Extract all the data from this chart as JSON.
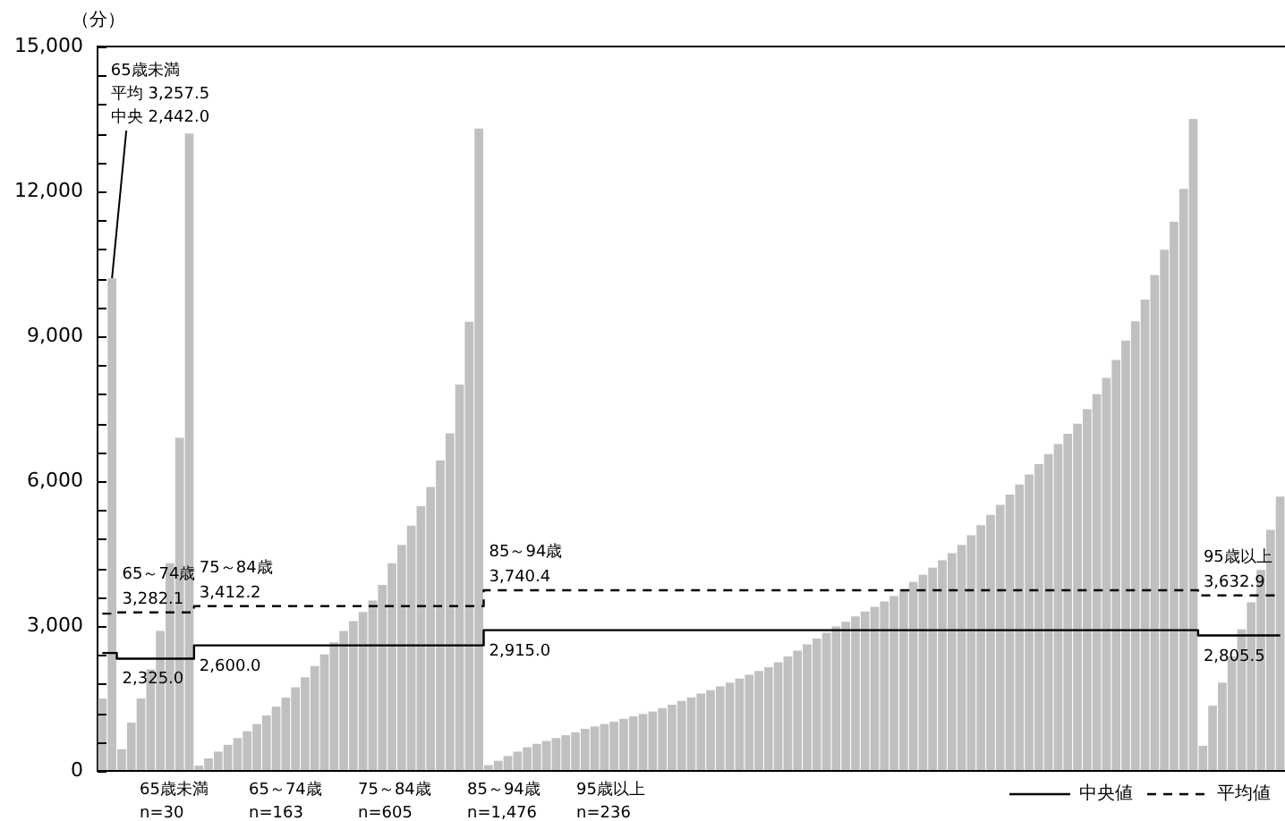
{
  "chart_data": {
    "type": "bar",
    "ylabel": "（分）",
    "categories": [
      null,
      null,
      null,
      null,
      null,
      null,
      null,
      null,
      null,
      null,
      null,
      null,
      null,
      null,
      null,
      null,
      null,
      null,
      null,
      null,
      null,
      null,
      null,
      null,
      null,
      null,
      null,
      null,
      null,
      null,
      null,
      null,
      null,
      null,
      null,
      null,
      null,
      null,
      null,
      null,
      null,
      null,
      null,
      null,
      null,
      null,
      null,
      null,
      null,
      null,
      null,
      null,
      null,
      null,
      null,
      null,
      null,
      null,
      null,
      null,
      null,
      null,
      null,
      null,
      null,
      null,
      null,
      null,
      null,
      null,
      null,
      null,
      null,
      null,
      null,
      null,
      null,
      null,
      null,
      null,
      null,
      null,
      null,
      null,
      null,
      null,
      null,
      null,
      null,
      null,
      null,
      null,
      null,
      null,
      null,
      null,
      null,
      null,
      null,
      null,
      null,
      null,
      null,
      null,
      null,
      null,
      null,
      null,
      null,
      null,
      null,
      null,
      null,
      null,
      null,
      null,
      null,
      null,
      null,
      null,
      null,
      null,
      null
    ],
    "ylim": [
      0,
      15000
    ],
    "yticks": [
      {
        "value": 0,
        "label": "0"
      },
      {
        "value": 600,
        "label": null
      },
      {
        "value": 1200,
        "label": null
      },
      {
        "value": 1800,
        "label": null
      },
      {
        "value": 2400,
        "label": null
      },
      {
        "value": 3000,
        "label": "3,000"
      },
      {
        "value": 3600,
        "label": null
      },
      {
        "value": 4200,
        "label": null
      },
      {
        "value": 4800,
        "label": null
      },
      {
        "value": 5400,
        "label": null
      },
      {
        "value": 6000,
        "label": "6,000"
      },
      {
        "value": 6600,
        "label": null
      },
      {
        "value": 7200,
        "label": null
      },
      {
        "value": 7800,
        "label": null
      },
      {
        "value": 8400,
        "label": null
      },
      {
        "value": 9000,
        "label": "9,000"
      },
      {
        "value": 9600,
        "label": null
      },
      {
        "value": 10200,
        "label": null
      },
      {
        "value": 10800,
        "label": null
      },
      {
        "value": 11400,
        "label": null
      },
      {
        "value": 12000,
        "label": "12,000"
      },
      {
        "value": 12600,
        "label": null
      },
      {
        "value": 13200,
        "label": null
      },
      {
        "value": 13800,
        "label": null
      },
      {
        "value": 14400,
        "label": null
      },
      {
        "value": 15000,
        "label": "15,000"
      }
    ],
    "tick_labels": "y",
    "legend": "bottom right",
    "series": [
      {
        "color": "#c0c0c0",
        "values": [
          1500,
          10200,
          450,
          1000,
          1500,
          2100,
          2900,
          4300,
          6900,
          13200,
          110,
          260,
          400,
          540,
          680,
          820,
          970,
          1150,
          1330,
          1520,
          1730,
          1940,
          2170,
          2410,
          2660,
          2900,
          3100,
          3290,
          3530,
          3850,
          4300,
          4680,
          5080,
          5480,
          5880,
          6430,
          6990,
          8000,
          9300,
          13300,
          120,
          210,
          310,
          400,
          490,
          560,
          620,
          680,
          740,
          800,
          870,
          920,
          970,
          1020,
          1080,
          1130,
          1180,
          1230,
          1300,
          1370,
          1450,
          1520,
          1600,
          1670,
          1750,
          1830,
          1910,
          1990,
          2070,
          2150,
          2250,
          2370,
          2490,
          2620,
          2740,
          2860,
          2990,
          3090,
          3200,
          3300,
          3400,
          3510,
          3620,
          3760,
          3910,
          4060,
          4210,
          4360,
          4510,
          4680,
          4880,
          5090,
          5300,
          5510,
          5720,
          5930,
          6140,
          6350,
          6560,
          6770,
          6980,
          7190,
          7490,
          7800,
          8140,
          8510,
          8910,
          9310,
          9760,
          10270,
          10790,
          11370,
          12050,
          13500,
          520,
          1350,
          1830,
          2370,
          2930,
          3490,
          4160,
          4990,
          5680
        ]
      },
      {
        "name": "中央値",
        "type": "line",
        "color": "#000000",
        "line_style": "solid",
        "marker": "none",
        "values": [
          2442,
          2442,
          2325,
          2325,
          2325,
          2325,
          2325,
          2325,
          2325,
          2325,
          2600,
          2600,
          2600,
          2600,
          2600,
          2600,
          2600,
          2600,
          2600,
          2600,
          2600,
          2600,
          2600,
          2600,
          2600,
          2600,
          2600,
          2600,
          2600,
          2600,
          2600,
          2600,
          2600,
          2600,
          2600,
          2600,
          2600,
          2600,
          2600,
          2600,
          2915,
          2915,
          2915,
          2915,
          2915,
          2915,
          2915,
          2915,
          2915,
          2915,
          2915,
          2915,
          2915,
          2915,
          2915,
          2915,
          2915,
          2915,
          2915,
          2915,
          2915,
          2915,
          2915,
          2915,
          2915,
          2915,
          2915,
          2915,
          2915,
          2915,
          2915,
          2915,
          2915,
          2915,
          2915,
          2915,
          2915,
          2915,
          2915,
          2915,
          2915,
          2915,
          2915,
          2915,
          2915,
          2915,
          2915,
          2915,
          2915,
          2915,
          2915,
          2915,
          2915,
          2915,
          2915,
          2915,
          2915,
          2915,
          2915,
          2915,
          2915,
          2915,
          2915,
          2915,
          2915,
          2915,
          2915,
          2915,
          2915,
          2915,
          2915,
          2915,
          2915,
          2915,
          2805.5,
          2805.5,
          2805.5,
          2805.5,
          2805.5,
          2805.5,
          2805.5,
          2805.5,
          2805.5
        ]
      },
      {
        "name": "平均値",
        "type": "line",
        "color": "#000000",
        "line_style": "dashed",
        "marker": "none",
        "values": [
          3257.5,
          3257.5,
          3282.1,
          3282.1,
          3282.1,
          3282.1,
          3282.1,
          3282.1,
          3282.1,
          3282.1,
          3412.2,
          3412.2,
          3412.2,
          3412.2,
          3412.2,
          3412.2,
          3412.2,
          3412.2,
          3412.2,
          3412.2,
          3412.2,
          3412.2,
          3412.2,
          3412.2,
          3412.2,
          3412.2,
          3412.2,
          3412.2,
          3412.2,
          3412.2,
          3412.2,
          3412.2,
          3412.2,
          3412.2,
          3412.2,
          3412.2,
          3412.2,
          3412.2,
          3412.2,
          3412.2,
          3740.4,
          3740.4,
          3740.4,
          3740.4,
          3740.4,
          3740.4,
          3740.4,
          3740.4,
          3740.4,
          3740.4,
          3740.4,
          3740.4,
          3740.4,
          3740.4,
          3740.4,
          3740.4,
          3740.4,
          3740.4,
          3740.4,
          3740.4,
          3740.4,
          3740.4,
          3740.4,
          3740.4,
          3740.4,
          3740.4,
          3740.4,
          3740.4,
          3740.4,
          3740.4,
          3740.4,
          3740.4,
          3740.4,
          3740.4,
          3740.4,
          3740.4,
          3740.4,
          3740.4,
          3740.4,
          3740.4,
          3740.4,
          3740.4,
          3740.4,
          3740.4,
          3740.4,
          3740.4,
          3740.4,
          3740.4,
          3740.4,
          3740.4,
          3740.4,
          3740.4,
          3740.4,
          3740.4,
          3740.4,
          3740.4,
          3740.4,
          3740.4,
          3740.4,
          3740.4,
          3740.4,
          3740.4,
          3740.4,
          3740.4,
          3740.4,
          3740.4,
          3740.4,
          3740.4,
          3740.4,
          3740.4,
          3740.4,
          3740.4,
          3740.4,
          3740.4,
          3632.9,
          3632.9,
          3632.9,
          3632.9,
          3632.9,
          3632.9,
          3632.9,
          3632.9,
          3632.9
        ]
      }
    ],
    "annotations": [
      "65歳未満",
      "平均 3,257.5",
      "中央 2,442.0",
      "65～74歳",
      "3,282.1",
      "2,325.0",
      "75～84歳",
      "3,412.2",
      "2,600.0",
      "85～94歳",
      "3,740.4",
      "2,915.0",
      "95歳以上",
      "3,632.9",
      "2,805.5",
      "65歳未満",
      "n=30",
      "65～74歳",
      "n=163",
      "75～84歳",
      "n=605",
      "85～94歳",
      "n=1,476",
      "95歳以上",
      "n=236"
    ]
  }
}
